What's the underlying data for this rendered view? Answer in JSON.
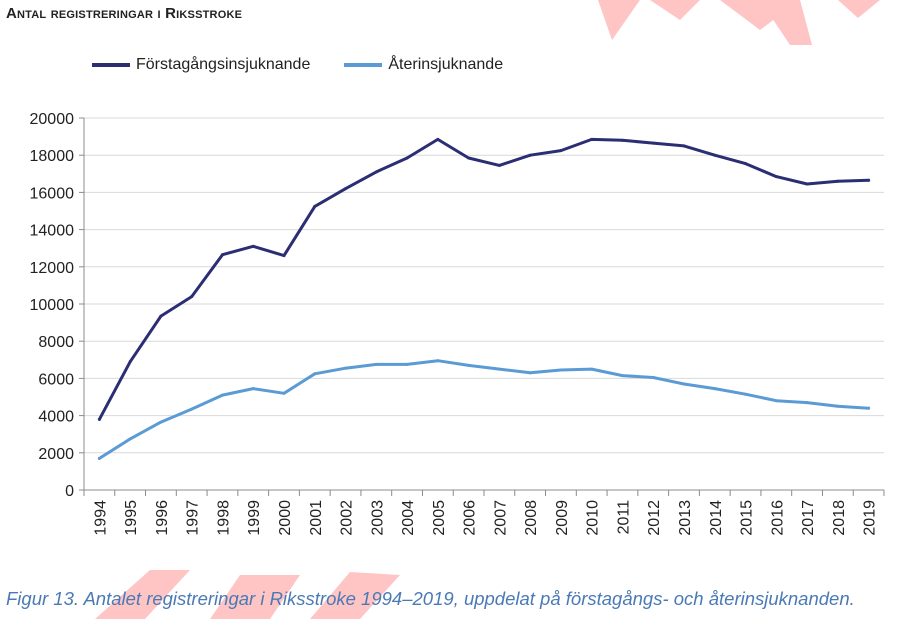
{
  "chart_data": {
    "type": "line",
    "title": "Antal registreringar i Riksstroke",
    "categories": [
      "1994",
      "1995",
      "1996",
      "1997",
      "1998",
      "1999",
      "2000",
      "2001",
      "2002",
      "2003",
      "2004",
      "2005",
      "2006",
      "2007",
      "2008",
      "2009",
      "2010",
      "2011",
      "2012",
      "2013",
      "2014",
      "2015",
      "2016",
      "2017",
      "2018",
      "2019"
    ],
    "series": [
      {
        "name": "Förstagångsinsjuknande",
        "color": "#2b2e73",
        "values": [
          3800,
          6900,
          9350,
          10400,
          12650,
          13100,
          12600,
          15250,
          16200,
          17100,
          17850,
          18850,
          17850,
          17450,
          18000,
          18250,
          18850,
          18800,
          18650,
          18500,
          18000,
          17550,
          16850,
          16450,
          16600,
          16650
        ]
      },
      {
        "name": "Återinsjuknande",
        "color": "#5b9bd5",
        "values": [
          1700,
          2750,
          3650,
          4350,
          5100,
          5450,
          5200,
          6250,
          6550,
          6750,
          6750,
          6950,
          6700,
          6500,
          6300,
          6450,
          6500,
          6150,
          6050,
          5700,
          5450,
          5150,
          4800,
          4700,
          4500,
          4400
        ]
      }
    ],
    "y_ticks": [
      0,
      2000,
      4000,
      6000,
      8000,
      10000,
      12000,
      14000,
      16000,
      18000,
      20000
    ],
    "ylim": [
      0,
      20000
    ],
    "grid": true,
    "legend_position": "top-left"
  },
  "caption": "Figur 13. Antalet registreringar i Riksstroke 1994–2019, uppdelat på förstagångs- och återinsjuknanden.",
  "colors": {
    "watermark": "#ff6b6b",
    "grid": "#d9d9d9",
    "axis": "#8c8c8c",
    "caption": "#4a7ab5"
  }
}
